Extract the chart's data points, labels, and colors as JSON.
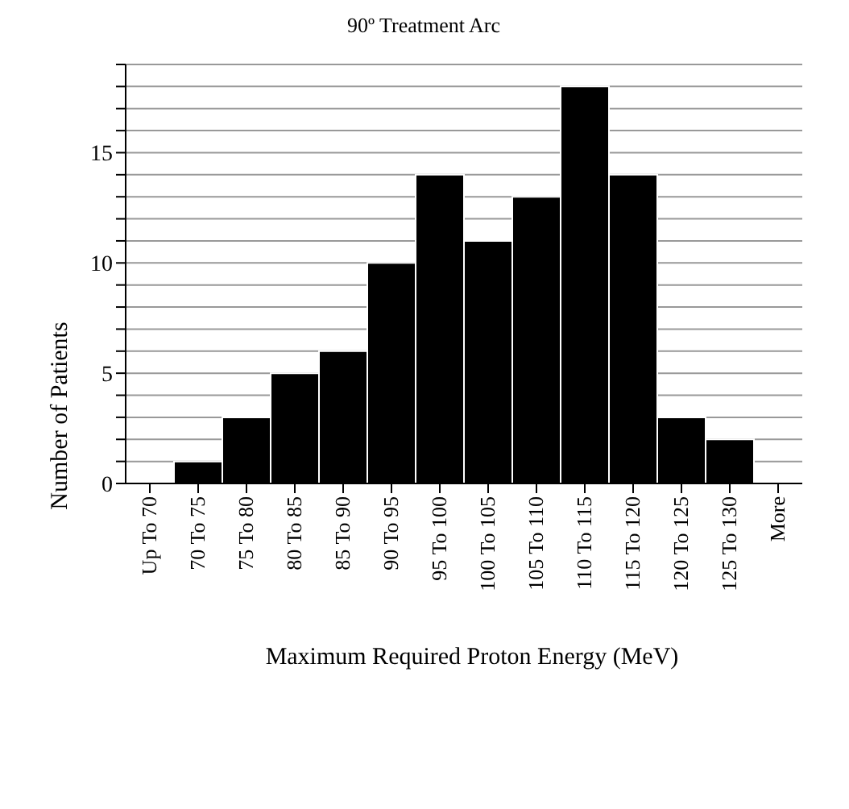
{
  "chart_data": {
    "type": "bar",
    "title": "90º Treatment Arc",
    "xlabel": "Maximum Required Proton Energy (MeV)",
    "ylabel": "Number of Patients",
    "categories": [
      "Up To 70",
      "70 To 75",
      "75 To 80",
      "80 To 85",
      "85 To 90",
      "90 To 95",
      "95 To 100",
      "100 To 105",
      "105 To 110",
      "110 To 115",
      "115 To 120",
      "120 To 125",
      "125 To 130",
      "More"
    ],
    "values": [
      0,
      1,
      3,
      5,
      6,
      10,
      14,
      11,
      13,
      18,
      14,
      3,
      2,
      0
    ],
    "color": "#000000",
    "ylim": [
      0,
      19
    ],
    "yticks": [
      0,
      {
        "value": 1,
        "label": null
      },
      {
        "value": 2,
        "label": null
      },
      {
        "value": 3,
        "label": null
      },
      {
        "value": 4,
        "label": null
      },
      5,
      {
        "value": 6,
        "label": null
      },
      {
        "value": 7,
        "label": null
      },
      {
        "value": 8,
        "label": null
      },
      {
        "value": 9,
        "label": null
      },
      10,
      {
        "value": 11,
        "label": null
      },
      {
        "value": 12,
        "label": null
      },
      {
        "value": 13,
        "label": null
      },
      {
        "value": 14,
        "label": null
      },
      15,
      {
        "value": 16,
        "label": null
      },
      {
        "value": 17,
        "label": null
      },
      {
        "value": 18,
        "label": null
      },
      {
        "value": 19,
        "label": null
      }
    ],
    "grid": "y"
  }
}
